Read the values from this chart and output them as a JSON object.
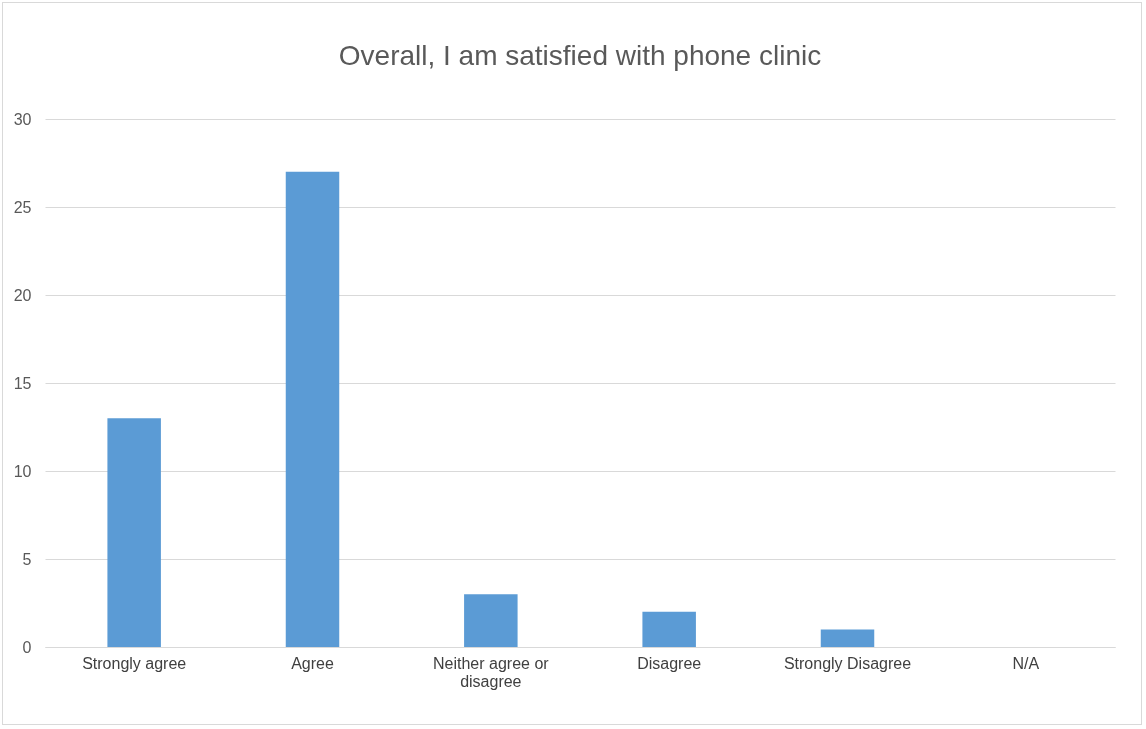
{
  "chart_data": {
    "type": "bar",
    "title": "Overall, I am satisfied with phone clinic",
    "categories": [
      "Strongly agree",
      "Agree",
      "Neither agree or disagree",
      "Disagree",
      "Strongly Disagree",
      "N/A"
    ],
    "values": [
      13,
      27,
      3,
      2,
      1,
      0
    ],
    "color": "#5b9bd5",
    "ylim": [
      0,
      30
    ],
    "yticks": [
      0,
      5,
      10,
      15,
      20,
      25,
      30
    ],
    "grid": "y"
  }
}
